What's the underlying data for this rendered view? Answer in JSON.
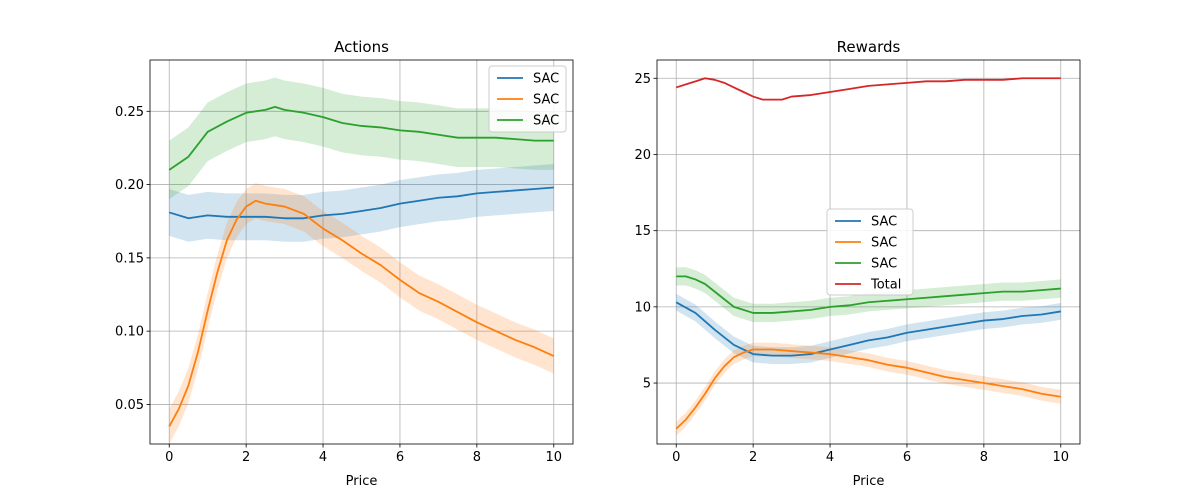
{
  "chart_data": [
    {
      "type": "line",
      "title": "Actions",
      "xlabel": "Price",
      "ylabel": "",
      "xlim": [
        -0.5,
        10.5
      ],
      "ylim": [
        0.023,
        0.285
      ],
      "xticks": [
        0,
        2,
        4,
        6,
        8,
        10
      ],
      "yticks": [
        0.05,
        0.1,
        0.15,
        0.2,
        0.25
      ],
      "ytick_labels": [
        "0.05",
        "0.10",
        "0.15",
        "0.20",
        "0.25"
      ],
      "grid": true,
      "legend": "top-right",
      "series": [
        {
          "name": "SAC",
          "color": "#1f77b4",
          "band_half_width": 0.016,
          "x": [
            0,
            0.5,
            1,
            1.5,
            2,
            2.5,
            3,
            3.5,
            4,
            4.5,
            5,
            5.5,
            6,
            6.5,
            7,
            7.5,
            8,
            8.5,
            9,
            9.5,
            10
          ],
          "values": [
            0.181,
            0.177,
            0.179,
            0.178,
            0.178,
            0.178,
            0.177,
            0.177,
            0.179,
            0.18,
            0.182,
            0.184,
            0.187,
            0.189,
            0.191,
            0.192,
            0.194,
            0.195,
            0.196,
            0.197,
            0.198
          ]
        },
        {
          "name": "SAC",
          "color": "#ff7f0e",
          "band_half_width": 0.012,
          "x": [
            0,
            0.25,
            0.5,
            0.75,
            1,
            1.25,
            1.5,
            1.75,
            2,
            2.25,
            2.5,
            3,
            3.5,
            4,
            4.5,
            5,
            5.5,
            6,
            6.5,
            7,
            7.5,
            8,
            8.5,
            9,
            9.5,
            10
          ],
          "values": [
            0.035,
            0.047,
            0.063,
            0.086,
            0.114,
            0.14,
            0.162,
            0.176,
            0.185,
            0.189,
            0.187,
            0.185,
            0.18,
            0.17,
            0.162,
            0.153,
            0.145,
            0.135,
            0.126,
            0.12,
            0.113,
            0.106,
            0.1,
            0.094,
            0.089,
            0.083
          ]
        },
        {
          "name": "SAC",
          "color": "#2ca02c",
          "band_half_width": 0.02,
          "x": [
            0,
            0.5,
            1,
            1.5,
            2,
            2.5,
            2.75,
            3,
            3.5,
            4,
            4.5,
            5,
            5.5,
            6,
            6.5,
            7,
            7.5,
            8,
            8.5,
            9,
            9.5,
            10
          ],
          "values": [
            0.21,
            0.219,
            0.236,
            0.243,
            0.249,
            0.251,
            0.253,
            0.251,
            0.249,
            0.246,
            0.242,
            0.24,
            0.239,
            0.237,
            0.236,
            0.234,
            0.232,
            0.232,
            0.232,
            0.231,
            0.23,
            0.23
          ]
        }
      ]
    },
    {
      "type": "line",
      "title": "Rewards",
      "xlabel": "Price",
      "ylabel": "",
      "xlim": [
        -0.5,
        10.5
      ],
      "ylim": [
        1.0,
        26.2
      ],
      "xticks": [
        0,
        2,
        4,
        6,
        8,
        10
      ],
      "yticks": [
        5,
        10,
        15,
        20,
        25
      ],
      "ytick_labels": [
        "5",
        "10",
        "15",
        "20",
        "25"
      ],
      "grid": true,
      "legend": "center",
      "series": [
        {
          "name": "SAC",
          "color": "#1f77b4",
          "band_half_width": 0.55,
          "x": [
            0,
            0.5,
            1,
            1.5,
            2,
            2.5,
            3,
            3.5,
            4,
            4.5,
            5,
            5.5,
            6,
            6.5,
            7,
            7.5,
            8,
            8.5,
            9,
            9.5,
            10
          ],
          "values": [
            10.3,
            9.6,
            8.5,
            7.5,
            6.9,
            6.8,
            6.8,
            6.9,
            7.2,
            7.5,
            7.8,
            8.0,
            8.3,
            8.5,
            8.7,
            8.9,
            9.1,
            9.2,
            9.4,
            9.5,
            9.7
          ]
        },
        {
          "name": "SAC",
          "color": "#ff7f0e",
          "band_half_width": 0.45,
          "x": [
            0,
            0.25,
            0.5,
            0.75,
            1,
            1.25,
            1.5,
            1.75,
            2,
            2.5,
            3,
            3.5,
            4,
            4.5,
            5,
            5.5,
            6,
            6.5,
            7,
            7.5,
            8,
            8.5,
            9,
            9.5,
            10
          ],
          "values": [
            2.0,
            2.6,
            3.4,
            4.3,
            5.3,
            6.1,
            6.7,
            7.0,
            7.2,
            7.2,
            7.1,
            7.0,
            6.9,
            6.7,
            6.5,
            6.2,
            6.0,
            5.7,
            5.4,
            5.2,
            5.0,
            4.8,
            4.6,
            4.3,
            4.1
          ]
        },
        {
          "name": "SAC",
          "color": "#2ca02c",
          "band_half_width": 0.6,
          "x": [
            0,
            0.25,
            0.5,
            0.75,
            1,
            1.25,
            1.5,
            1.75,
            2,
            2.5,
            3,
            3.5,
            4,
            4.5,
            5,
            5.5,
            6,
            6.5,
            7,
            7.5,
            8,
            8.5,
            9,
            9.5,
            10
          ],
          "values": [
            12.0,
            12.0,
            11.8,
            11.5,
            11.0,
            10.5,
            10.0,
            9.8,
            9.6,
            9.6,
            9.7,
            9.8,
            10.0,
            10.1,
            10.3,
            10.4,
            10.5,
            10.6,
            10.7,
            10.8,
            10.9,
            11.0,
            11.0,
            11.1,
            11.2
          ]
        },
        {
          "name": "Total",
          "color": "#d62728",
          "band_half_width": 0,
          "x": [
            0,
            0.25,
            0.5,
            0.75,
            1,
            1.25,
            1.5,
            1.75,
            2,
            2.25,
            2.5,
            2.75,
            3,
            3.5,
            4,
            4.5,
            5,
            5.5,
            6,
            6.5,
            7,
            7.5,
            8,
            8.5,
            9,
            9.5,
            10
          ],
          "values": [
            24.4,
            24.6,
            24.8,
            25.0,
            24.9,
            24.7,
            24.4,
            24.1,
            23.8,
            23.6,
            23.6,
            23.6,
            23.8,
            23.9,
            24.1,
            24.3,
            24.5,
            24.6,
            24.7,
            24.8,
            24.8,
            24.9,
            24.9,
            24.9,
            25.0,
            25.0,
            25.0
          ]
        }
      ]
    }
  ]
}
